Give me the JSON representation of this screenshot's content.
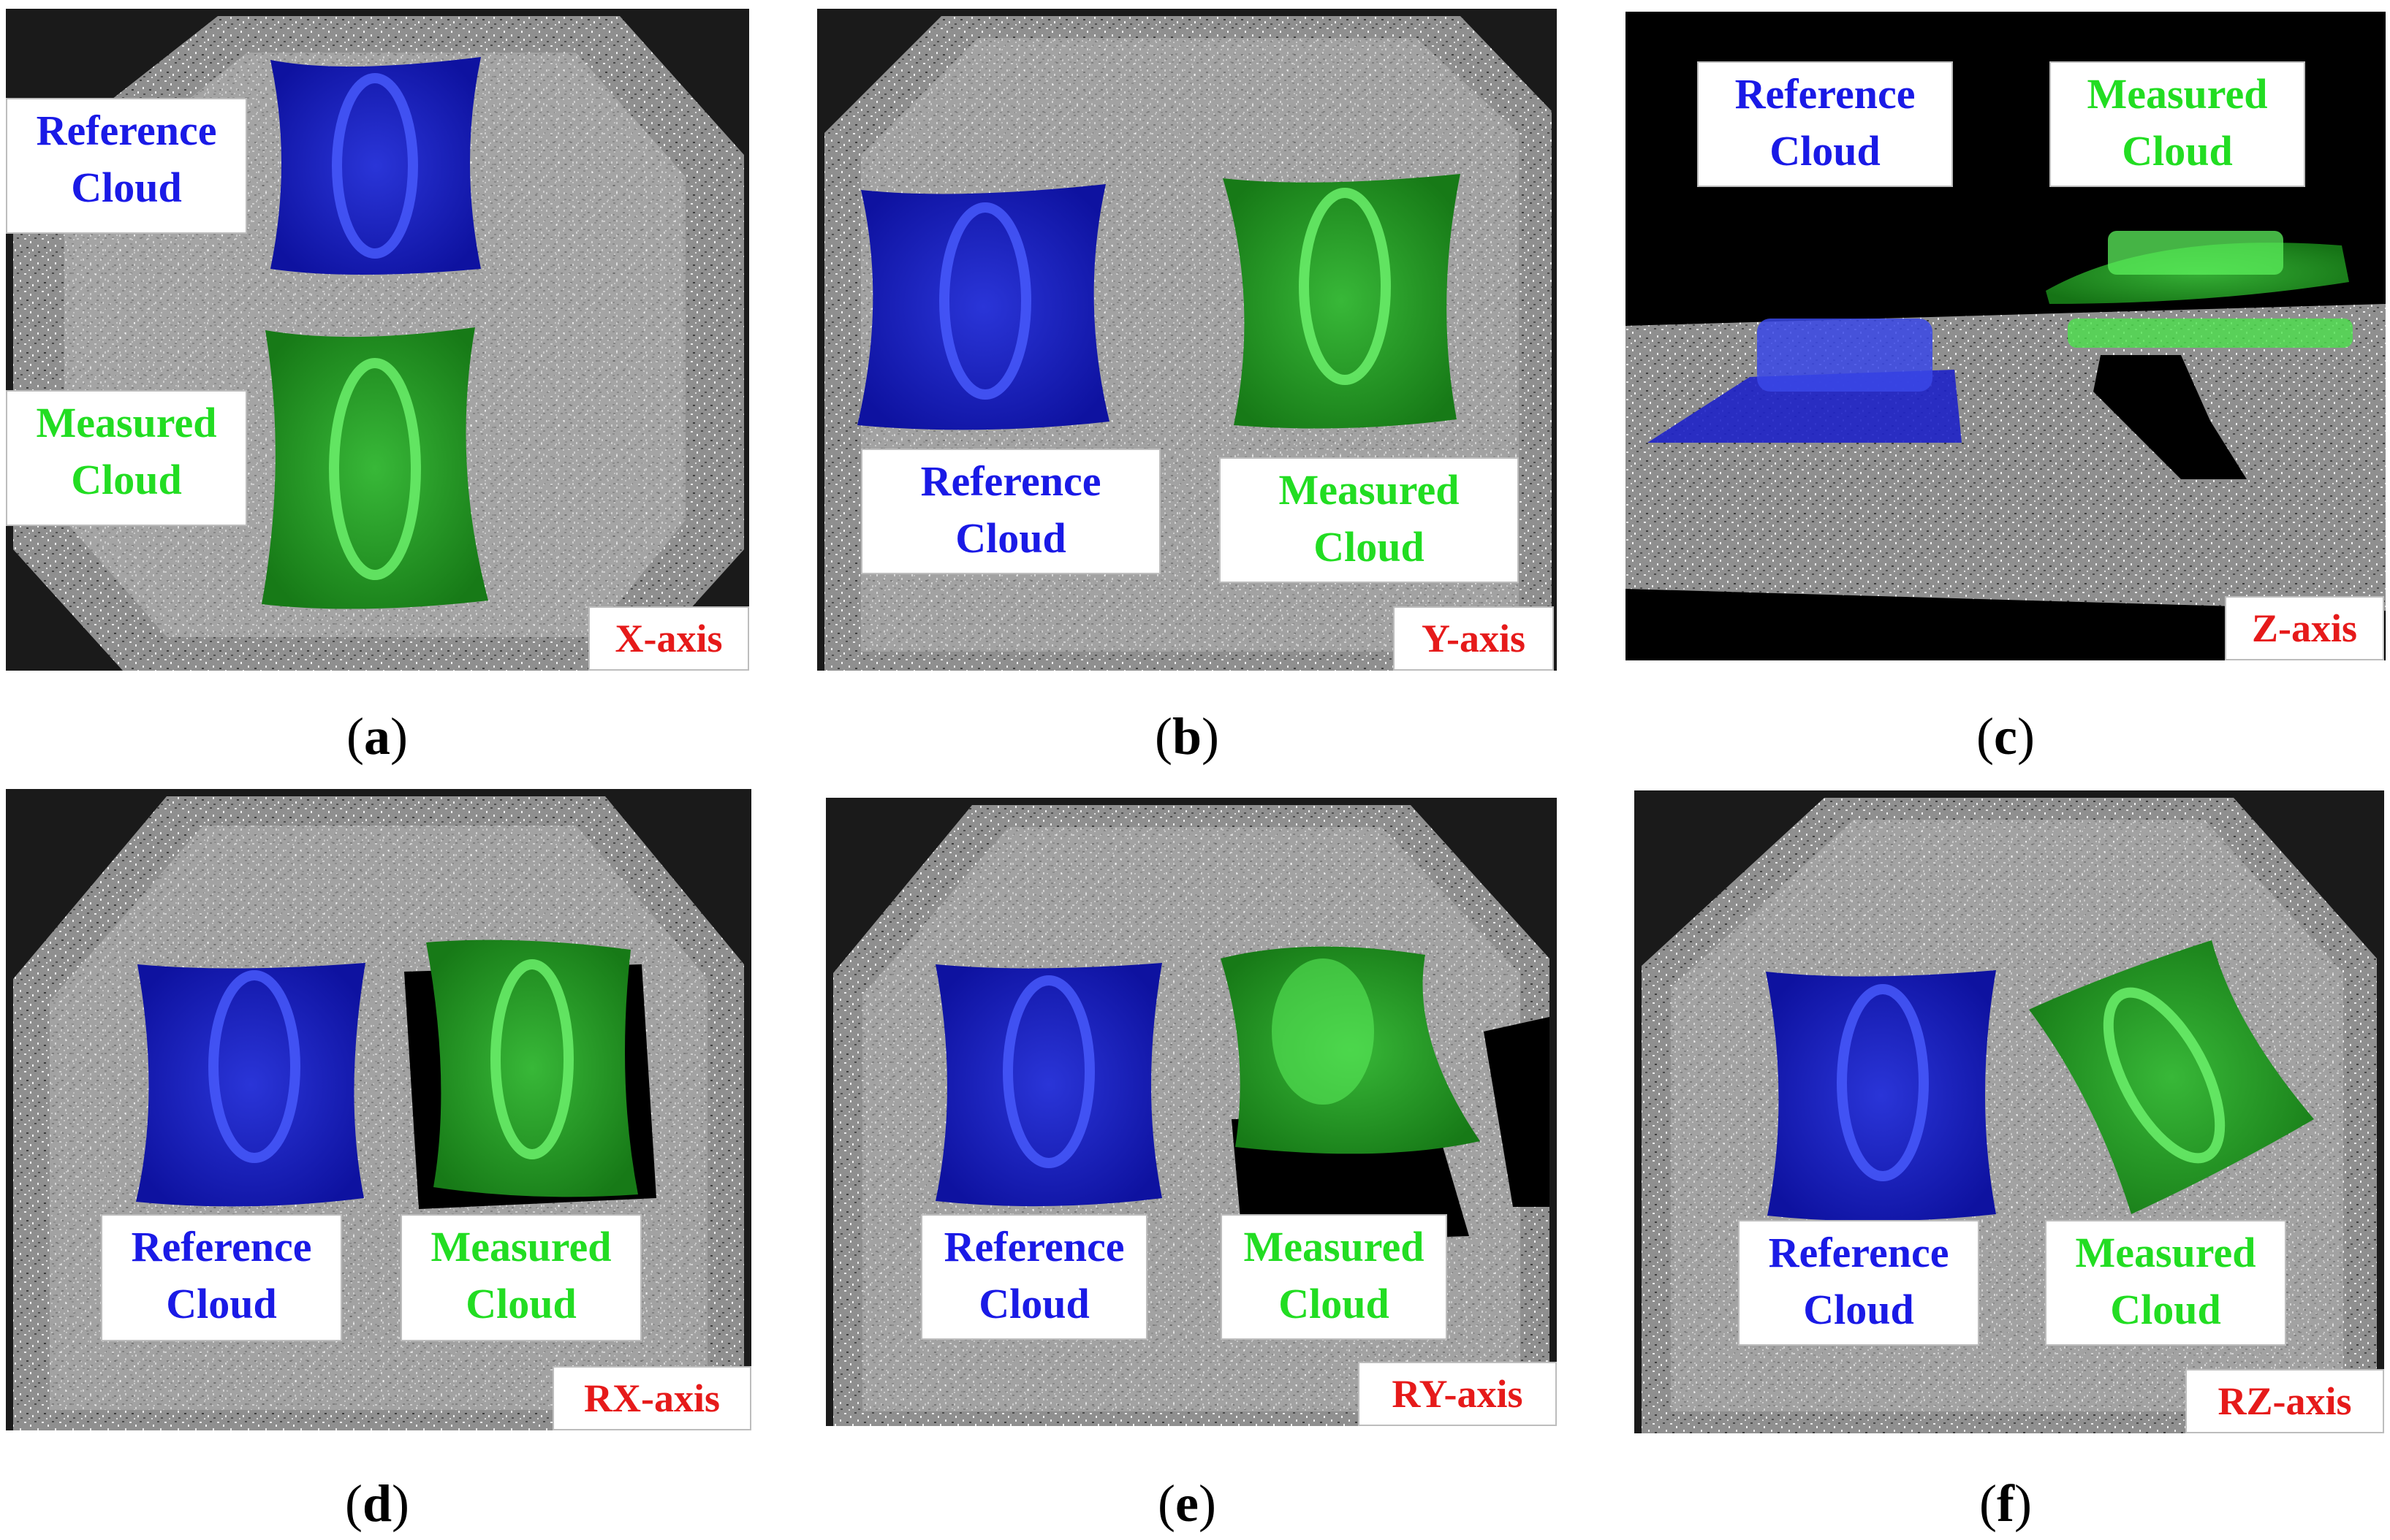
{
  "panels": [
    {
      "id": "a",
      "caption": "a",
      "axis_label": "X-axis",
      "reference_label": [
        "Reference",
        "Cloud"
      ],
      "measured_label": [
        "Measured",
        "Cloud"
      ]
    },
    {
      "id": "b",
      "caption": "b",
      "axis_label": "Y-axis",
      "reference_label": [
        "Reference",
        "Cloud"
      ],
      "measured_label": [
        "Measured",
        "Cloud"
      ]
    },
    {
      "id": "c",
      "caption": "c",
      "axis_label": "Z-axis",
      "reference_label": [
        "Reference",
        "Cloud"
      ],
      "measured_label": [
        "Measured",
        "Cloud"
      ]
    },
    {
      "id": "d",
      "caption": "d",
      "axis_label": "RX-axis",
      "reference_label": [
        "Reference",
        "Cloud"
      ],
      "measured_label": [
        "Measured",
        "Cloud"
      ]
    },
    {
      "id": "e",
      "caption": "e",
      "axis_label": "RY-axis",
      "reference_label": [
        "Reference",
        "Cloud"
      ],
      "measured_label": [
        "Measured",
        "Cloud"
      ]
    },
    {
      "id": "f",
      "caption": "f",
      "axis_label": "RZ-axis",
      "reference_label": [
        "Reference",
        "Cloud"
      ],
      "measured_label": [
        "Measured",
        "Cloud"
      ]
    }
  ],
  "colors": {
    "reference": "#1a1ae6",
    "measured": "#22dd22",
    "axis_label": "#e61a1a"
  }
}
